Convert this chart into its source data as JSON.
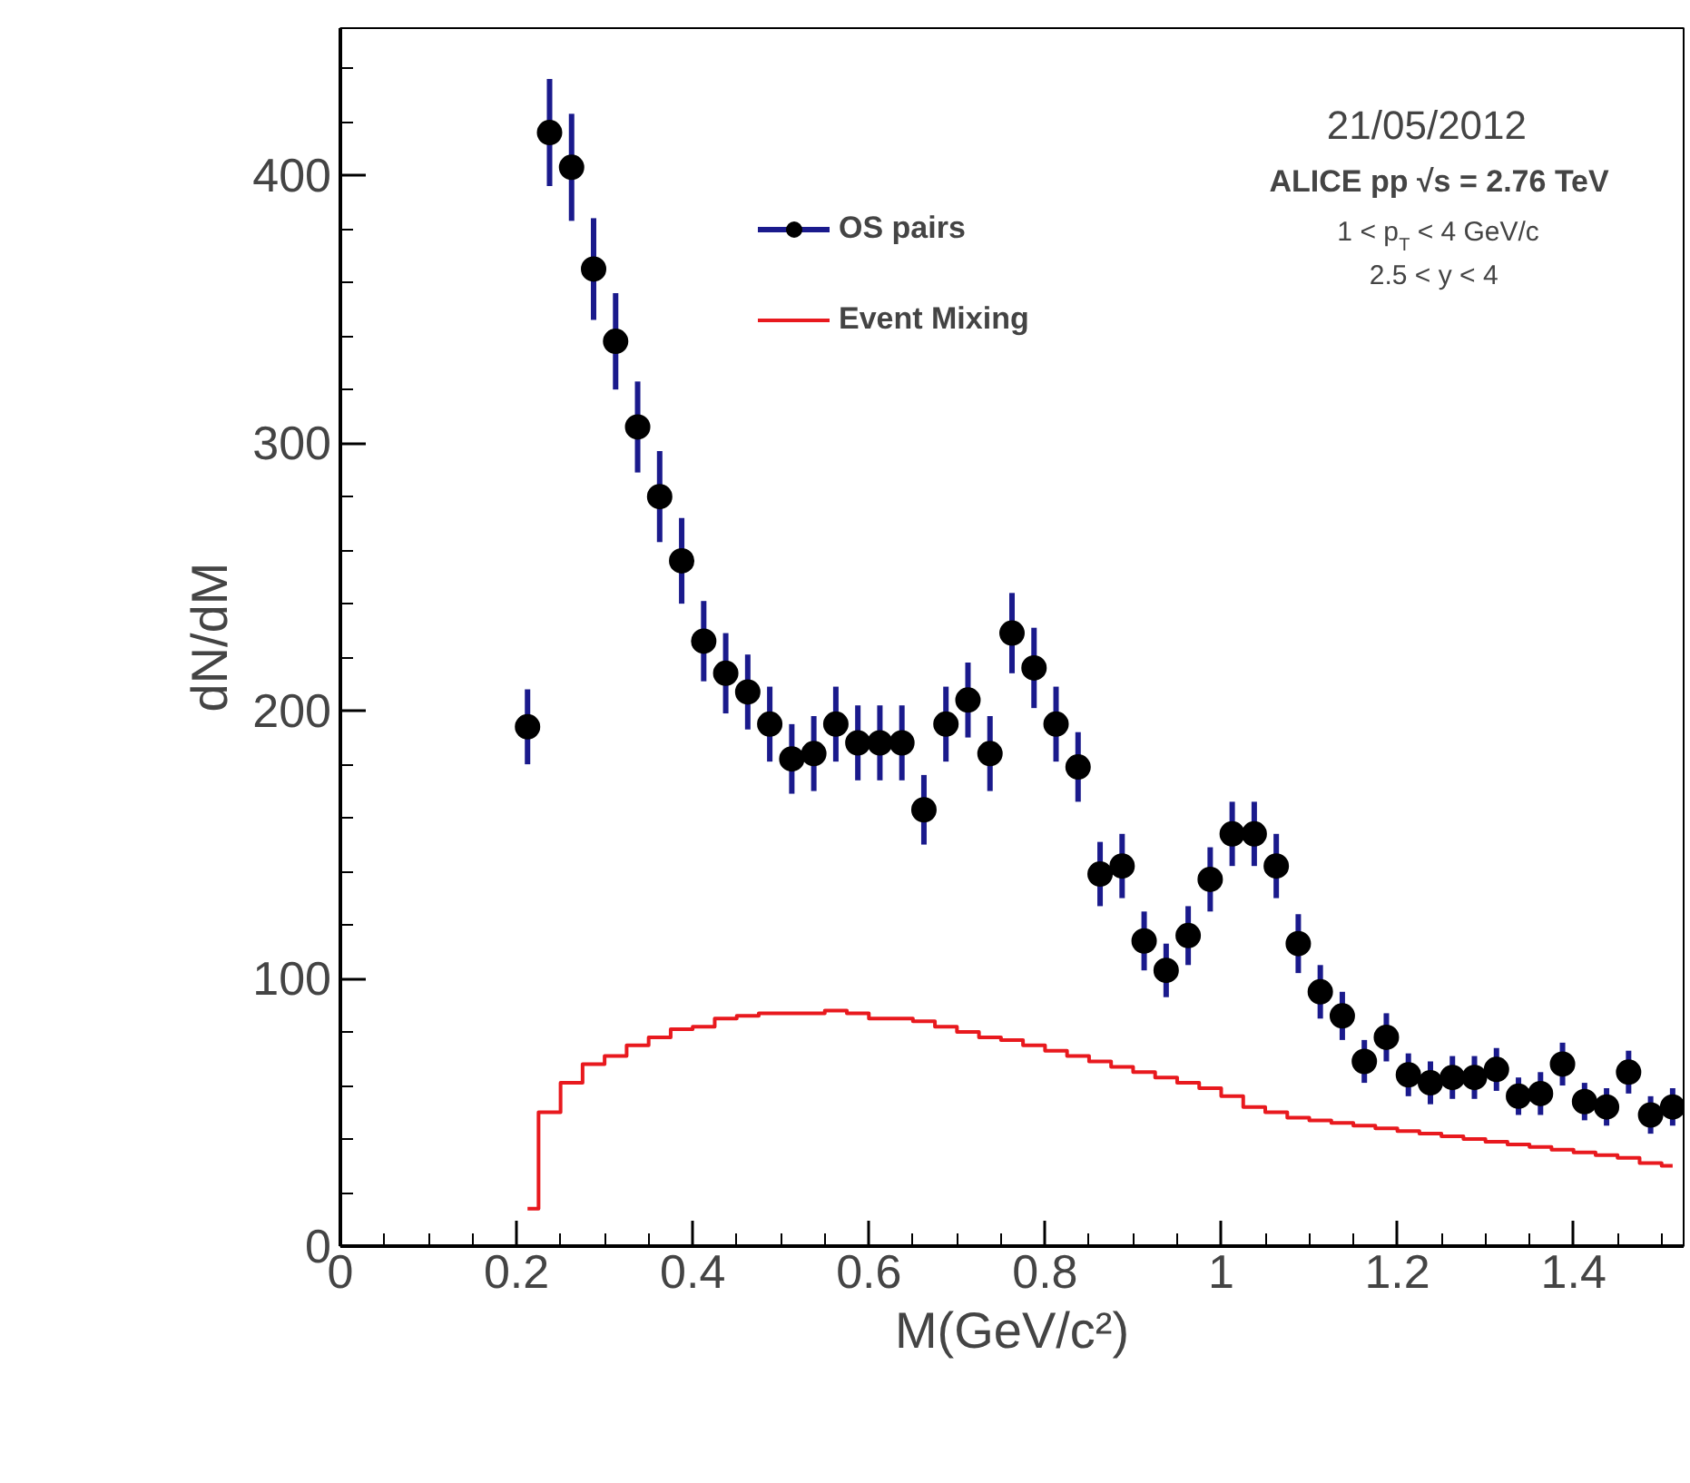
{
  "chart_data": {
    "type": "scatter",
    "xlabel": "M(GeV/c²)",
    "ylabel": "dN/dM",
    "x": [
      0.2125,
      0.2375,
      0.2625,
      0.2875,
      0.3125,
      0.3375,
      0.3625,
      0.3875,
      0.4125,
      0.4375,
      0.4625,
      0.4875,
      0.5125,
      0.5375,
      0.5625,
      0.5875,
      0.6125,
      0.6375,
      0.6625,
      0.6875,
      0.7125,
      0.7375,
      0.7625,
      0.7875,
      0.8125,
      0.8375,
      0.8625,
      0.8875,
      0.9125,
      0.9375,
      0.9625,
      0.9875,
      1.0125,
      1.0375,
      1.0625,
      1.0875,
      1.1125,
      1.1375,
      1.1625,
      1.1875,
      1.2125,
      1.2375,
      1.2625,
      1.2875,
      1.3125,
      1.3375,
      1.3625,
      1.3875,
      1.4125,
      1.4375,
      1.4625,
      1.4875,
      1.5125
    ],
    "series": [
      {
        "name": "OS pairs",
        "color": "#000000",
        "marker": "circle",
        "values": [
          194,
          416,
          403,
          365,
          338,
          306,
          280,
          256,
          226,
          214,
          207,
          195,
          182,
          184,
          195,
          188,
          188,
          188,
          163,
          195,
          204,
          184,
          229,
          216,
          195,
          179,
          139,
          142,
          114,
          103,
          116,
          137,
          154,
          154,
          142,
          113,
          95,
          86,
          69,
          78,
          64,
          61,
          63,
          63,
          66,
          56,
          57,
          68,
          54,
          52,
          65,
          49,
          52
        ],
        "errors": [
          14,
          20,
          20,
          19,
          18,
          17,
          17,
          16,
          15,
          15,
          14,
          14,
          13,
          14,
          14,
          14,
          14,
          14,
          13,
          14,
          14,
          14,
          15,
          15,
          14,
          13,
          12,
          12,
          11,
          10,
          11,
          12,
          12,
          12,
          12,
          11,
          10,
          9,
          8,
          9,
          8,
          8,
          8,
          8,
          8,
          7,
          8,
          8,
          7,
          7,
          8,
          7,
          7
        ]
      },
      {
        "name": "Event Mixing",
        "type": "step",
        "color": "#e8191e",
        "values": [
          14,
          50,
          61,
          68,
          71,
          75,
          78,
          81,
          82,
          85,
          86,
          87,
          87,
          87,
          88,
          87,
          85,
          85,
          84,
          82,
          80,
          78,
          77,
          75,
          73,
          71,
          69,
          67,
          65,
          63,
          61,
          59,
          56,
          52,
          50,
          48,
          47,
          46,
          45,
          44,
          43,
          42,
          41,
          40,
          39,
          38,
          37,
          36,
          35,
          34,
          33,
          31,
          30
        ]
      }
    ],
    "xlim": [
      0,
      1.525
    ],
    "ylim": [
      0,
      455
    ],
    "xticks": [
      0,
      0.2,
      0.4,
      0.6,
      0.8,
      {
        "value": 1,
        "label": "1"
      },
      1.2,
      1.4
    ],
    "yticks": [
      0,
      100,
      200,
      300,
      400
    ],
    "grid": false,
    "legend": "top",
    "annotations": [
      "21/05/2012",
      "ALICE pp √s = 2.76 TeV",
      "1 < p$_{T}$ < 4 GeV/c",
      "2.5 < y < 4"
    ]
  }
}
